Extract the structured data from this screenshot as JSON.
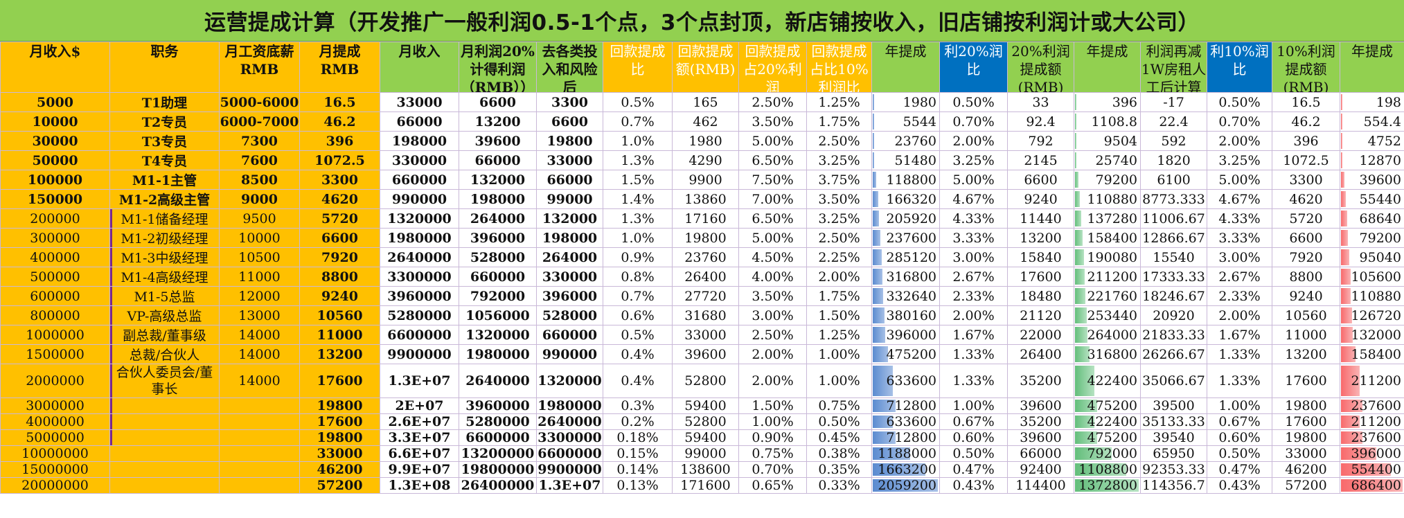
{
  "title": "运营提成计算（开发推广一般利润0.5-1个点，3个点封顶，新店铺按收入，旧店铺按利润计或大公司）",
  "headers": [
    "月收入$",
    "职务",
    "月工资底薪RMB",
    "月提成RMB",
    "月收入",
    "月利润20%计得利润（RMB））",
    "去各类投入和风险后",
    "回款提成比",
    "回款提成额(RMB)",
    "回款提成占20%利润",
    "回款提成占比10%利润比",
    "年提成",
    "利20%润比",
    "20%利润提成额(RMB)",
    "年提成",
    "利润再减1W房租人工后计算",
    "利10%润比",
    "10%利润提成额(RMB)",
    "年提成"
  ],
  "rows": [
    [
      "5000",
      "T1助理",
      "5000-6000",
      "16.5",
      "33000",
      "6600",
      "3300",
      "0.5%",
      "165",
      "2.50%",
      "1.25%",
      "1980",
      "0.50%",
      "33",
      "396",
      "-17",
      "0.50%",
      "16.5",
      "198"
    ],
    [
      "10000",
      "T2专员",
      "6000-7000",
      "46.2",
      "66000",
      "13200",
      "6600",
      "0.7%",
      "462",
      "3.50%",
      "1.75%",
      "5544",
      "0.70%",
      "92.4",
      "1108.8",
      "22.4",
      "0.70%",
      "46.2",
      "554.4"
    ],
    [
      "30000",
      "T3专员",
      "7300",
      "396",
      "198000",
      "39600",
      "19800",
      "1.0%",
      "1980",
      "5.00%",
      "2.50%",
      "23760",
      "2.00%",
      "792",
      "9504",
      "592",
      "2.00%",
      "396",
      "4752"
    ],
    [
      "50000",
      "T4专员",
      "7600",
      "1072.5",
      "330000",
      "66000",
      "33000",
      "1.3%",
      "4290",
      "6.50%",
      "3.25%",
      "51480",
      "3.25%",
      "2145",
      "25740",
      "1820",
      "3.25%",
      "1072.5",
      "12870"
    ],
    [
      "100000",
      "M1-1主管",
      "8500",
      "3300",
      "660000",
      "132000",
      "66000",
      "1.5%",
      "9900",
      "7.50%",
      "3.75%",
      "118800",
      "5.00%",
      "6600",
      "79200",
      "6100",
      "5.00%",
      "3300",
      "39600"
    ],
    [
      "150000",
      "M1-2高级主管",
      "9000",
      "4620",
      "990000",
      "198000",
      "99000",
      "1.4%",
      "13860",
      "7.00%",
      "3.50%",
      "166320",
      "4.67%",
      "9240",
      "110880",
      "8773.333",
      "4.67%",
      "4620",
      "55440"
    ],
    [
      "200000",
      "M1-1储备经理",
      "9500",
      "5720",
      "1320000",
      "264000",
      "132000",
      "1.3%",
      "17160",
      "6.50%",
      "3.25%",
      "205920",
      "4.33%",
      "11440",
      "137280",
      "11006.67",
      "4.33%",
      "5720",
      "68640"
    ],
    [
      "300000",
      "M1-2初级经理",
      "10000",
      "6600",
      "1980000",
      "396000",
      "198000",
      "1.0%",
      "19800",
      "5.00%",
      "2.50%",
      "237600",
      "3.33%",
      "13200",
      "158400",
      "12866.67",
      "3.33%",
      "6600",
      "79200"
    ],
    [
      "400000",
      "M1-3中级经理",
      "10500",
      "7920",
      "2640000",
      "528000",
      "264000",
      "0.9%",
      "23760",
      "4.50%",
      "2.25%",
      "285120",
      "3.00%",
      "15840",
      "190080",
      "15540",
      "3.00%",
      "7920",
      "95040"
    ],
    [
      "500000",
      "M1-4高级经理",
      "11000",
      "8800",
      "3300000",
      "660000",
      "330000",
      "0.8%",
      "26400",
      "4.00%",
      "2.00%",
      "316800",
      "2.67%",
      "17600",
      "211200",
      "17333.33",
      "2.67%",
      "8800",
      "105600"
    ],
    [
      "600000",
      "M1-5总监",
      "12000",
      "9240",
      "3960000",
      "792000",
      "396000",
      "0.7%",
      "27720",
      "3.50%",
      "1.75%",
      "332640",
      "2.33%",
      "18480",
      "221760",
      "18246.67",
      "2.33%",
      "9240",
      "110880"
    ],
    [
      "800000",
      "VP-高级总监",
      "13000",
      "10560",
      "5280000",
      "1056000",
      "528000",
      "0.6%",
      "31680",
      "3.00%",
      "1.50%",
      "380160",
      "2.00%",
      "21120",
      "253440",
      "20920",
      "2.00%",
      "10560",
      "126720"
    ],
    [
      "1000000",
      "副总裁/董事级",
      "14000",
      "11000",
      "6600000",
      "1320000",
      "660000",
      "0.5%",
      "33000",
      "2.50%",
      "1.25%",
      "396000",
      "1.67%",
      "22000",
      "264000",
      "21833.33",
      "1.67%",
      "11000",
      "132000"
    ],
    [
      "1500000",
      "总裁/合伙人",
      "14000",
      "13200",
      "9900000",
      "1980000",
      "990000",
      "0.4%",
      "39600",
      "2.00%",
      "1.00%",
      "475200",
      "1.33%",
      "26400",
      "316800",
      "26266.67",
      "1.33%",
      "13200",
      "158400"
    ],
    [
      "2000000",
      "合伙人委员会/董事长",
      "14000",
      "17600",
      "1.3E+07",
      "2640000",
      "1320000",
      "0.4%",
      "52800",
      "2.00%",
      "1.00%",
      "633600",
      "1.33%",
      "35200",
      "422400",
      "35066.67",
      "1.33%",
      "17600",
      "211200"
    ],
    [
      "3000000",
      "",
      "",
      "19800",
      "2E+07",
      "3960000",
      "1980000",
      "0.3%",
      "59400",
      "1.50%",
      "0.75%",
      "712800",
      "1.00%",
      "39600",
      "475200",
      "39500",
      "1.00%",
      "19800",
      "237600"
    ],
    [
      "4000000",
      "",
      "",
      "17600",
      "2.6E+07",
      "5280000",
      "2640000",
      "0.2%",
      "52800",
      "1.00%",
      "0.50%",
      "633600",
      "0.67%",
      "35200",
      "422400",
      "35133.33",
      "0.67%",
      "17600",
      "211200"
    ],
    [
      "5000000",
      "",
      "",
      "19800",
      "3.3E+07",
      "6600000",
      "3300000",
      "0.18%",
      "59400",
      "0.90%",
      "0.45%",
      "712800",
      "0.60%",
      "39600",
      "475200",
      "39540",
      "0.60%",
      "19800",
      "237600"
    ],
    [
      "10000000",
      "",
      "",
      "33000",
      "6.6E+07",
      "13200000",
      "6600000",
      "0.15%",
      "99000",
      "0.75%",
      "0.38%",
      "1188000",
      "0.50%",
      "66000",
      "792000",
      "65950",
      "0.50%",
      "33000",
      "396000"
    ],
    [
      "15000000",
      "",
      "",
      "46200",
      "9.9E+07",
      "19800000",
      "9900000",
      "0.14%",
      "138600",
      "0.70%",
      "0.35%",
      "1663200",
      "0.47%",
      "92400",
      "1108800",
      "92353.33",
      "0.47%",
      "46200",
      "554400"
    ],
    [
      "20000000",
      "",
      "",
      "57200",
      "1.3E+08",
      "26400000",
      "1.3E+07",
      "0.13%",
      "171600",
      "0.65%",
      "0.33%",
      "2059200",
      "0.43%",
      "114400",
      "1372800",
      "114356.7",
      "0.43%",
      "57200",
      "686400"
    ]
  ],
  "bar_columns": {
    "11": "#5B8BD0",
    "14": "#63BE7B",
    "18": "#F8696B"
  },
  "colors": {
    "title_bg": "#92D050",
    "orange": "#FFC000",
    "green": "#92D050",
    "blue": "#0070C0",
    "border": "#c9b8d8"
  }
}
